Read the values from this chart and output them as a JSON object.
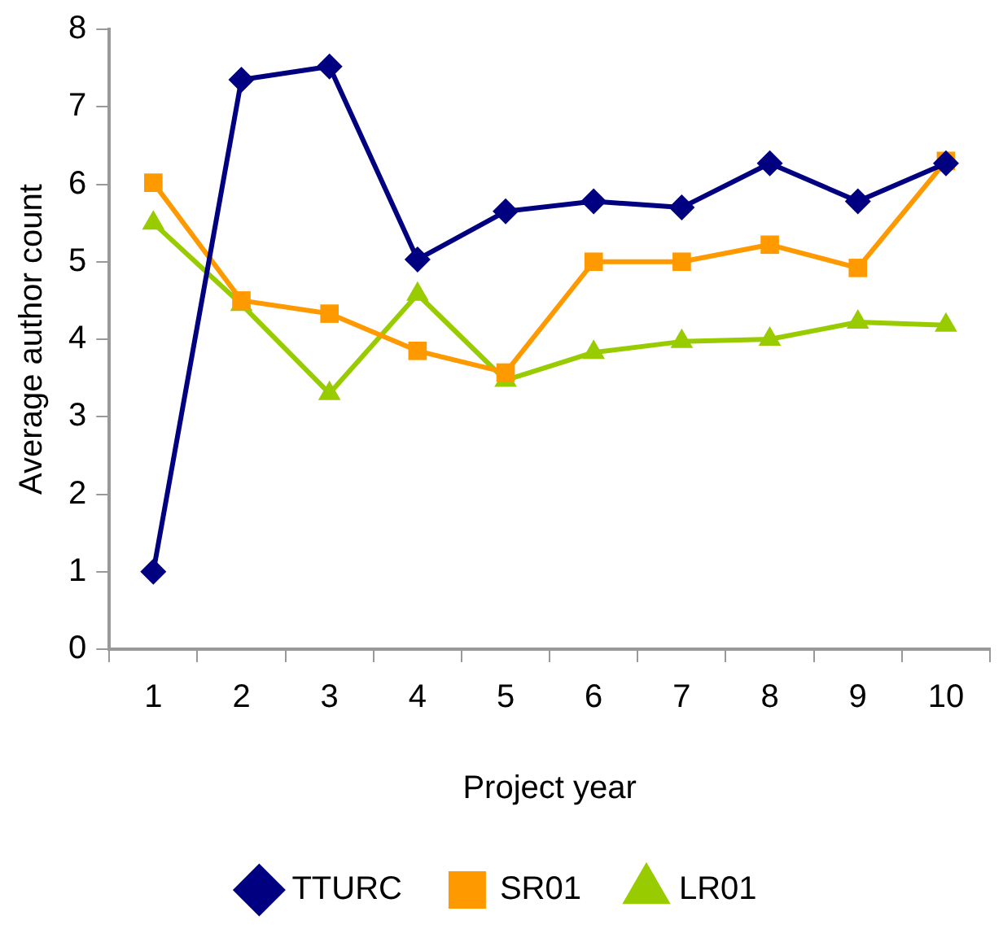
{
  "chart_data": {
    "type": "line",
    "xlabel": "Project year",
    "ylabel": "Average author count",
    "categories": [
      "1",
      "2",
      "3",
      "4",
      "5",
      "6",
      "7",
      "8",
      "9",
      "10"
    ],
    "series": [
      {
        "name": "TTURC",
        "color": "#000080",
        "marker": "diamond",
        "values": [
          1.0,
          7.35,
          7.52,
          5.03,
          5.65,
          5.78,
          5.7,
          6.27,
          5.78,
          6.27
        ]
      },
      {
        "name": "SR01",
        "color": "#ff9900",
        "marker": "square",
        "values": [
          6.02,
          4.5,
          4.33,
          3.85,
          3.57,
          5.0,
          5.0,
          5.22,
          4.92,
          6.3
        ]
      },
      {
        "name": "LR01",
        "color": "#99cc00",
        "marker": "triangle",
        "values": [
          5.5,
          4.45,
          3.3,
          4.58,
          3.47,
          3.83,
          3.97,
          4.0,
          4.22,
          4.18
        ]
      }
    ],
    "ylim": [
      0,
      8
    ],
    "yticks": [
      0,
      1,
      2,
      3,
      4,
      5,
      6,
      7,
      8
    ],
    "grid": false,
    "legend": "bottom",
    "line_style": "solid"
  }
}
